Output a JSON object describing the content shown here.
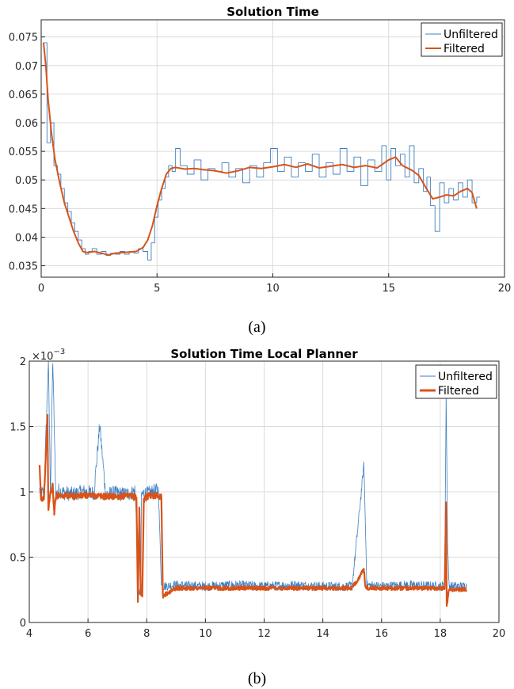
{
  "captions": {
    "a": "(a)",
    "b": "(b)"
  },
  "colors": {
    "unfiltered": "#3f7fbf",
    "filtered": "#d95319",
    "grid": "#dcdcdc",
    "axis": "#262626"
  },
  "chart_data": [
    {
      "type": "line",
      "title": "Solution Time",
      "xlabel": "",
      "ylabel": "",
      "xlim": [
        0,
        20
      ],
      "ylim": [
        0.033,
        0.078
      ],
      "xticks": [
        0,
        5,
        10,
        15,
        20
      ],
      "yticks": [
        0.035,
        0.04,
        0.045,
        0.05,
        0.055,
        0.06,
        0.065,
        0.07,
        0.075
      ],
      "xtick_labels": [
        "0",
        "5",
        "10",
        "15",
        "20"
      ],
      "ytick_labels": [
        "0.035",
        "0.04",
        "0.045",
        "0.05",
        "0.055",
        "0.06",
        "0.065",
        "0.07",
        "0.075"
      ],
      "grid": true,
      "legend_position": "top-right",
      "series": [
        {
          "name": "Unfiltered",
          "style": "stairs",
          "x": [
            0.1,
            0.25,
            0.4,
            0.55,
            0.7,
            0.85,
            1.0,
            1.15,
            1.3,
            1.45,
            1.6,
            1.75,
            1.9,
            2.05,
            2.2,
            2.4,
            2.6,
            2.8,
            3.0,
            3.2,
            3.4,
            3.6,
            3.8,
            4.0,
            4.2,
            4.4,
            4.6,
            4.75,
            4.9,
            5.05,
            5.2,
            5.35,
            5.5,
            5.65,
            5.8,
            6.0,
            6.3,
            6.6,
            6.9,
            7.2,
            7.5,
            7.8,
            8.1,
            8.4,
            8.7,
            9.0,
            9.3,
            9.6,
            9.9,
            10.2,
            10.5,
            10.8,
            11.1,
            11.4,
            11.7,
            12.0,
            12.3,
            12.6,
            12.9,
            13.2,
            13.5,
            13.8,
            14.1,
            14.4,
            14.7,
            14.9,
            15.1,
            15.3,
            15.5,
            15.7,
            15.9,
            16.1,
            16.3,
            16.5,
            16.65,
            16.8,
            17.0,
            17.2,
            17.4,
            17.6,
            17.8,
            18.0,
            18.2,
            18.4,
            18.6,
            18.8
          ],
          "y": [
            0.074,
            0.0565,
            0.06,
            0.0525,
            0.051,
            0.0485,
            0.046,
            0.0445,
            0.0425,
            0.041,
            0.0395,
            0.038,
            0.037,
            0.0375,
            0.038,
            0.037,
            0.0375,
            0.0368,
            0.0372,
            0.037,
            0.0375,
            0.037,
            0.0375,
            0.0372,
            0.038,
            0.0375,
            0.036,
            0.039,
            0.0435,
            0.0465,
            0.0485,
            0.0505,
            0.0525,
            0.0515,
            0.0555,
            0.0525,
            0.051,
            0.0535,
            0.05,
            0.052,
            0.0515,
            0.053,
            0.0505,
            0.052,
            0.0495,
            0.0525,
            0.0505,
            0.053,
            0.0555,
            0.0515,
            0.054,
            0.0505,
            0.053,
            0.0515,
            0.0545,
            0.0505,
            0.053,
            0.051,
            0.0555,
            0.0515,
            0.054,
            0.049,
            0.0535,
            0.0515,
            0.056,
            0.05,
            0.0555,
            0.0525,
            0.0545,
            0.0505,
            0.056,
            0.0495,
            0.052,
            0.048,
            0.0505,
            0.0455,
            0.041,
            0.0495,
            0.046,
            0.0485,
            0.0465,
            0.0495,
            0.047,
            0.05,
            0.046,
            0.047
          ]
        },
        {
          "name": "Filtered",
          "style": "smooth",
          "x": [
            0.1,
            0.2,
            0.3,
            0.45,
            0.6,
            0.8,
            1.0,
            1.2,
            1.4,
            1.6,
            1.8,
            2.0,
            2.3,
            2.6,
            2.9,
            3.2,
            3.5,
            3.8,
            4.1,
            4.4,
            4.6,
            4.8,
            5.0,
            5.2,
            5.4,
            5.6,
            5.8,
            6.2,
            6.6,
            7.0,
            7.5,
            8.0,
            8.5,
            9.0,
            9.5,
            10.0,
            10.5,
            11.0,
            11.5,
            12.0,
            12.5,
            13.0,
            13.5,
            14.0,
            14.5,
            15.0,
            15.3,
            15.6,
            16.0,
            16.3,
            16.6,
            16.9,
            17.2,
            17.5,
            17.8,
            18.1,
            18.4,
            18.6,
            18.8
          ],
          "y": [
            0.074,
            0.07,
            0.064,
            0.058,
            0.0535,
            0.0495,
            0.046,
            0.0435,
            0.041,
            0.039,
            0.0375,
            0.0373,
            0.0375,
            0.0372,
            0.0369,
            0.0372,
            0.0373,
            0.0374,
            0.0375,
            0.0382,
            0.0395,
            0.042,
            0.0455,
            0.0485,
            0.051,
            0.052,
            0.0522,
            0.0519,
            0.052,
            0.0518,
            0.0516,
            0.0512,
            0.0516,
            0.0522,
            0.052,
            0.0523,
            0.0527,
            0.0522,
            0.0528,
            0.0521,
            0.0524,
            0.0527,
            0.0522,
            0.0525,
            0.0521,
            0.0535,
            0.054,
            0.0525,
            0.0517,
            0.0508,
            0.0487,
            0.0467,
            0.047,
            0.0474,
            0.0472,
            0.048,
            0.0485,
            0.0478,
            0.045
          ]
        }
      ]
    },
    {
      "type": "line",
      "title": "Solution Time Local Planner",
      "xlabel": "",
      "ylabel": "",
      "y_multiplier_label": "×10",
      "y_multiplier_exponent": "−3",
      "xlim": [
        4,
        20
      ],
      "ylim": [
        0,
        2
      ],
      "xticks": [
        4,
        6,
        8,
        10,
        12,
        14,
        16,
        18,
        20
      ],
      "yticks": [
        0,
        0.5,
        1,
        1.5,
        2
      ],
      "xtick_labels": [
        "4",
        "6",
        "8",
        "10",
        "12",
        "14",
        "16",
        "18",
        "20"
      ],
      "ytick_labels": [
        "0",
        "0.5",
        "1",
        "1.5",
        "2"
      ],
      "grid": true,
      "legend_position": "top-right",
      "series": [
        {
          "name": "Unfiltered",
          "style": "noisy",
          "x": [
            4.35,
            4.5,
            4.65,
            4.72,
            4.8,
            4.9,
            5.0,
            5.2,
            5.5,
            5.8,
            6.2,
            6.4,
            6.6,
            6.9,
            7.2,
            7.5,
            7.6,
            7.7,
            7.72,
            7.8,
            7.82,
            7.9,
            8.0,
            8.2,
            8.4,
            8.5,
            8.55,
            9.0,
            10.0,
            11.0,
            12.0,
            13.0,
            14.0,
            15.0,
            15.4,
            15.5,
            16.0,
            17.0,
            18.0,
            18.15,
            18.2,
            18.25,
            18.3,
            18.9
          ],
          "y": [
            1.0,
            0.97,
            2.0,
            0.98,
            2.0,
            0.96,
            1.0,
            0.98,
            0.97,
            0.99,
            0.98,
            1.5,
            0.97,
            0.98,
            0.97,
            0.98,
            1.0,
            0.6,
            0.22,
            0.24,
            0.96,
            0.98,
            0.97,
            0.99,
            1.0,
            0.28,
            0.27,
            0.28,
            0.27,
            0.28,
            0.27,
            0.28,
            0.27,
            0.27,
            1.2,
            0.28,
            0.27,
            0.28,
            0.27,
            0.28,
            1.75,
            0.6,
            0.27,
            0.27
          ]
        },
        {
          "name": "Filtered",
          "style": "noisy",
          "x": [
            4.35,
            4.4,
            4.5,
            4.62,
            4.65,
            4.7,
            4.8,
            4.85,
            4.9,
            5.0,
            5.5,
            6.0,
            6.5,
            7.0,
            7.5,
            7.65,
            7.7,
            7.75,
            7.8,
            7.85,
            7.9,
            8.0,
            8.3,
            8.5,
            8.55,
            9.0,
            10.0,
            11.0,
            12.0,
            13.0,
            14.0,
            15.0,
            15.4,
            15.45,
            16.0,
            17.0,
            18.0,
            18.15,
            18.2,
            18.22,
            18.3,
            18.9
          ],
          "y": [
            1.18,
            0.93,
            0.96,
            1.56,
            0.84,
            0.97,
            1.04,
            0.82,
            0.96,
            0.97,
            0.96,
            0.97,
            0.96,
            0.96,
            0.96,
            0.95,
            0.16,
            0.88,
            0.21,
            0.2,
            0.93,
            0.96,
            0.97,
            0.96,
            0.2,
            0.26,
            0.26,
            0.26,
            0.26,
            0.26,
            0.26,
            0.26,
            0.4,
            0.26,
            0.26,
            0.26,
            0.26,
            0.26,
            0.93,
            0.12,
            0.25,
            0.25
          ]
        }
      ]
    }
  ]
}
